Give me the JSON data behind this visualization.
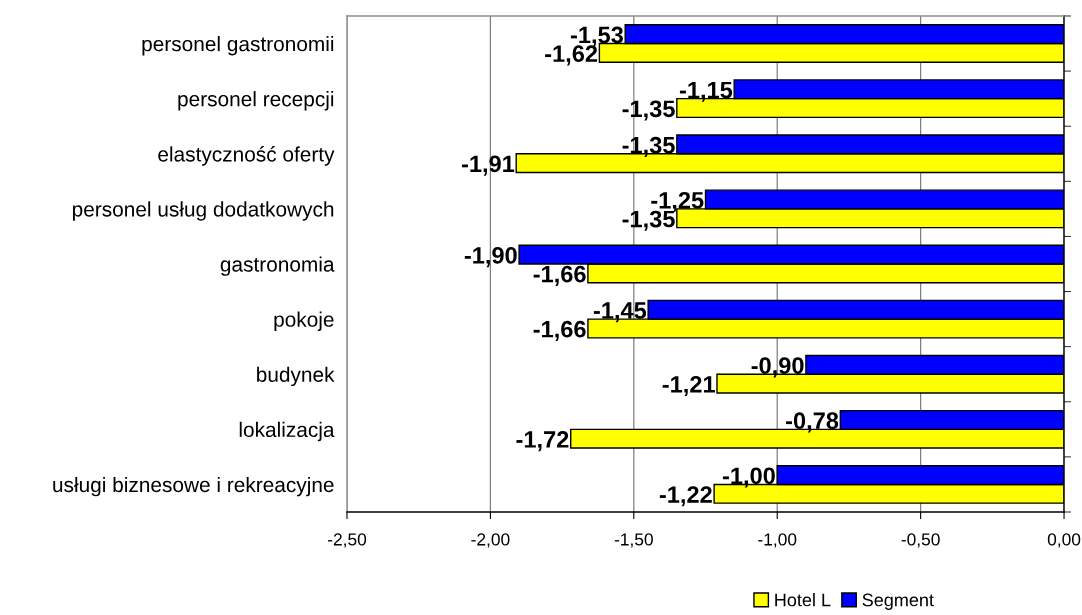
{
  "chart_data": {
    "type": "bar",
    "orientation": "horizontal",
    "categories": [
      "personel gastronomii",
      "personel recepcji",
      "elastyczność oferty",
      "personel usług dodatkowych",
      "gastronomia",
      "pokoje",
      "budynek",
      "lokalizacja",
      "usługi biznesowe i rekreacyjne"
    ],
    "series": [
      {
        "name": "Hotel L",
        "color": "#ffff00",
        "values": [
          -1.62,
          -1.35,
          -1.91,
          -1.35,
          -1.66,
          -1.66,
          -1.21,
          -1.72,
          -1.22
        ],
        "value_labels": [
          "-1,62",
          "-1,35",
          "-1,91",
          "-1,35",
          "-1,66",
          "-1,66",
          "-1,21",
          "-1,72",
          "-1,22"
        ]
      },
      {
        "name": "Segment",
        "color": "#0000ff",
        "values": [
          -1.53,
          -1.15,
          -1.35,
          -1.25,
          -1.9,
          -1.45,
          -0.9,
          -0.78,
          -1.0
        ],
        "value_labels": [
          "-1,53",
          "-1,15",
          "-1,35",
          "-1,25",
          "-1,90",
          "-1,45",
          "-0,90",
          "-0,78",
          "-1,00"
        ]
      }
    ],
    "xlim": [
      -2.5,
      0
    ],
    "xticks": [
      {
        "value": -2.5,
        "label": "-2,50"
      },
      {
        "value": -2.0,
        "label": "-2,00"
      },
      {
        "value": -1.5,
        "label": "-1,50"
      },
      {
        "value": -1.0,
        "label": "-1,00"
      },
      {
        "value": -0.5,
        "label": "-0,50"
      },
      {
        "value": 0,
        "label": "0,00"
      }
    ],
    "grid": "x",
    "legend": "bottom"
  }
}
